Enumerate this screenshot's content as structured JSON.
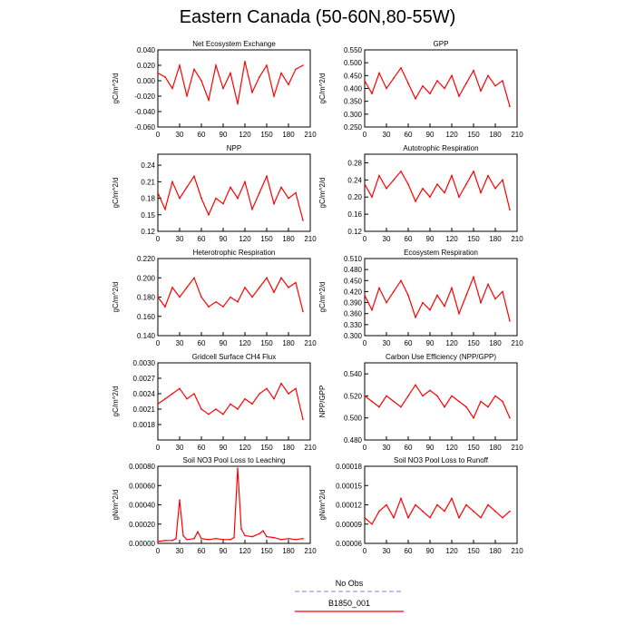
{
  "title": "Eastern Canada (50-60N,80-55W)",
  "x_ticks": [
    0,
    30,
    60,
    90,
    120,
    150,
    180,
    210
  ],
  "series_color": "#ff0000",
  "legend": [
    {
      "label": "No Obs",
      "color": "#9999ff",
      "style": "dashed"
    },
    {
      "label": "B1850_001",
      "color": "#ff0000",
      "style": "solid"
    }
  ],
  "chart_data": [
    {
      "type": "line",
      "title": "Net Ecosystem Exchange",
      "ylabel": "gC/m^2/d",
      "xlim": [
        0,
        210
      ],
      "ylim": [
        -0.06,
        0.04
      ],
      "yticks": [
        "-0.060",
        "-0.040",
        "-0.020",
        "0.000",
        "0.020",
        "0.040"
      ],
      "x": [
        0,
        10,
        20,
        30,
        40,
        50,
        60,
        70,
        80,
        90,
        100,
        110,
        120,
        130,
        140,
        150,
        160,
        170,
        180,
        190,
        200
      ],
      "values": [
        0.01,
        0.005,
        -0.01,
        0.02,
        -0.02,
        0.015,
        0.0,
        -0.025,
        0.02,
        -0.01,
        0.01,
        -0.03,
        0.025,
        -0.015,
        0.005,
        0.02,
        -0.02,
        0.01,
        -0.005,
        0.015,
        0.02
      ]
    },
    {
      "type": "line",
      "title": "GPP",
      "ylabel": "gC/m^2/d",
      "xlim": [
        0,
        210
      ],
      "ylim": [
        0.25,
        0.55
      ],
      "yticks": [
        "0.250",
        "0.300",
        "0.350",
        "0.400",
        "0.450",
        "0.500",
        "0.550"
      ],
      "x": [
        0,
        10,
        20,
        30,
        40,
        50,
        60,
        70,
        80,
        90,
        100,
        110,
        120,
        130,
        140,
        150,
        160,
        170,
        180,
        190,
        200
      ],
      "values": [
        0.43,
        0.38,
        0.46,
        0.4,
        0.44,
        0.48,
        0.42,
        0.36,
        0.41,
        0.38,
        0.43,
        0.4,
        0.45,
        0.37,
        0.42,
        0.47,
        0.39,
        0.45,
        0.41,
        0.43,
        0.33
      ]
    },
    {
      "type": "line",
      "title": "NPP",
      "ylabel": "gC/m^2/d",
      "xlim": [
        0,
        210
      ],
      "ylim": [
        0.12,
        0.26
      ],
      "yticks": [
        "0.12",
        "0.15",
        "0.18",
        "0.21",
        "0.24"
      ],
      "x": [
        0,
        10,
        20,
        30,
        40,
        50,
        60,
        70,
        80,
        90,
        100,
        110,
        120,
        130,
        140,
        150,
        160,
        170,
        180,
        190,
        200
      ],
      "values": [
        0.19,
        0.16,
        0.21,
        0.18,
        0.2,
        0.22,
        0.18,
        0.15,
        0.18,
        0.17,
        0.2,
        0.18,
        0.21,
        0.16,
        0.19,
        0.22,
        0.17,
        0.2,
        0.18,
        0.19,
        0.14
      ]
    },
    {
      "type": "line",
      "title": "Autotrophic Respiration",
      "ylabel": "gC/m^2/d",
      "xlim": [
        0,
        210
      ],
      "ylim": [
        0.12,
        0.3
      ],
      "yticks": [
        "0.12",
        "0.16",
        "0.20",
        "0.24",
        "0.28"
      ],
      "x": [
        0,
        10,
        20,
        30,
        40,
        50,
        60,
        70,
        80,
        90,
        100,
        110,
        120,
        130,
        140,
        150,
        160,
        170,
        180,
        190,
        200
      ],
      "values": [
        0.23,
        0.2,
        0.25,
        0.22,
        0.24,
        0.26,
        0.23,
        0.19,
        0.22,
        0.2,
        0.23,
        0.21,
        0.25,
        0.2,
        0.23,
        0.26,
        0.21,
        0.25,
        0.22,
        0.24,
        0.17
      ]
    },
    {
      "type": "line",
      "title": "Heterotrophic Respiration",
      "ylabel": "gC/m^2/d",
      "xlim": [
        0,
        210
      ],
      "ylim": [
        0.14,
        0.22
      ],
      "yticks": [
        "0.140",
        "0.160",
        "0.180",
        "0.200",
        "0.220"
      ],
      "x": [
        0,
        10,
        20,
        30,
        40,
        50,
        60,
        70,
        80,
        90,
        100,
        110,
        120,
        130,
        140,
        150,
        160,
        170,
        180,
        190,
        200
      ],
      "values": [
        0.18,
        0.17,
        0.19,
        0.18,
        0.19,
        0.2,
        0.18,
        0.17,
        0.175,
        0.17,
        0.18,
        0.175,
        0.19,
        0.18,
        0.19,
        0.2,
        0.185,
        0.2,
        0.19,
        0.195,
        0.165
      ]
    },
    {
      "type": "line",
      "title": "Ecosystem Respiration",
      "ylabel": "gC/m^2/d",
      "xlim": [
        0,
        210
      ],
      "ylim": [
        0.3,
        0.51
      ],
      "yticks": [
        "0.300",
        "0.330",
        "0.360",
        "0.390",
        "0.420",
        "0.450",
        "0.480",
        "0.510"
      ],
      "x": [
        0,
        10,
        20,
        30,
        40,
        50,
        60,
        70,
        80,
        90,
        100,
        110,
        120,
        130,
        140,
        150,
        160,
        170,
        180,
        190,
        200
      ],
      "values": [
        0.41,
        0.37,
        0.43,
        0.39,
        0.42,
        0.45,
        0.41,
        0.35,
        0.39,
        0.37,
        0.41,
        0.38,
        0.43,
        0.36,
        0.41,
        0.46,
        0.39,
        0.44,
        0.4,
        0.42,
        0.34
      ]
    },
    {
      "type": "line",
      "title": "Gridcell Surface CH4 Flux",
      "ylabel": "gC/m^2/d",
      "xlim": [
        0,
        210
      ],
      "ylim": [
        0.0015,
        0.003
      ],
      "yticks": [
        "0.0018",
        "0.0021",
        "0.0024",
        "0.0027",
        "0.0030"
      ],
      "x": [
        0,
        10,
        20,
        30,
        40,
        50,
        60,
        70,
        80,
        90,
        100,
        110,
        120,
        130,
        140,
        150,
        160,
        170,
        180,
        190,
        200
      ],
      "values": [
        0.0022,
        0.0023,
        0.0024,
        0.0025,
        0.0023,
        0.0024,
        0.0021,
        0.002,
        0.0021,
        0.002,
        0.0022,
        0.0021,
        0.0023,
        0.0022,
        0.0024,
        0.0025,
        0.0023,
        0.0026,
        0.0024,
        0.0025,
        0.0019
      ]
    },
    {
      "type": "line",
      "title": "Carbon Use Efficiency (NPP/GPP)",
      "ylabel": "NPP/GPP",
      "xlim": [
        0,
        210
      ],
      "ylim": [
        0.48,
        0.55
      ],
      "yticks": [
        "0.480",
        "0.500",
        "0.520",
        "0.540"
      ],
      "x": [
        0,
        10,
        20,
        30,
        40,
        50,
        60,
        70,
        80,
        90,
        100,
        110,
        120,
        130,
        140,
        150,
        160,
        170,
        180,
        190,
        200
      ],
      "values": [
        0.52,
        0.515,
        0.51,
        0.52,
        0.515,
        0.51,
        0.52,
        0.53,
        0.52,
        0.525,
        0.52,
        0.51,
        0.52,
        0.515,
        0.51,
        0.5,
        0.515,
        0.51,
        0.52,
        0.515,
        0.5
      ]
    },
    {
      "type": "line",
      "title": "Soil NO3 Pool Loss to Leaching",
      "ylabel": "gN/m^2/d",
      "xlim": [
        0,
        210
      ],
      "ylim": [
        0,
        0.0008
      ],
      "yticks": [
        "0.00000",
        "0.00020",
        "0.00040",
        "0.00060",
        "0.00080"
      ],
      "x": [
        0,
        10,
        20,
        25,
        30,
        35,
        40,
        50,
        55,
        60,
        70,
        80,
        90,
        100,
        105,
        110,
        115,
        120,
        130,
        140,
        145,
        150,
        160,
        170,
        180,
        190,
        200
      ],
      "values": [
        2e-05,
        3e-05,
        3e-05,
        5e-05,
        0.00045,
        8e-05,
        4e-05,
        5e-05,
        0.00012,
        5e-05,
        4e-05,
        5e-05,
        4e-05,
        4e-05,
        6e-05,
        0.00078,
        0.00015,
        8e-05,
        7e-05,
        0.0001,
        0.00013,
        7e-05,
        6e-05,
        4e-05,
        5e-05,
        4e-05,
        5e-05
      ]
    },
    {
      "type": "line",
      "title": "Soil NO3 Pool Loss to Runoff",
      "ylabel": "gN/m^2/d",
      "xlim": [
        0,
        210
      ],
      "ylim": [
        6e-05,
        0.00018
      ],
      "yticks": [
        "0.00006",
        "0.00009",
        "0.00012",
        "0.00015",
        "0.00018"
      ],
      "x": [
        0,
        10,
        20,
        30,
        40,
        50,
        60,
        70,
        80,
        90,
        100,
        110,
        120,
        130,
        140,
        150,
        160,
        170,
        180,
        190,
        200
      ],
      "values": [
        0.0001,
        9e-05,
        0.00011,
        0.00012,
        0.0001,
        0.00013,
        0.0001,
        0.00012,
        0.00011,
        0.0001,
        0.00012,
        0.00011,
        0.00013,
        0.0001,
        0.00012,
        0.00011,
        0.0001,
        0.00012,
        0.00011,
        0.0001,
        0.00011
      ]
    }
  ]
}
